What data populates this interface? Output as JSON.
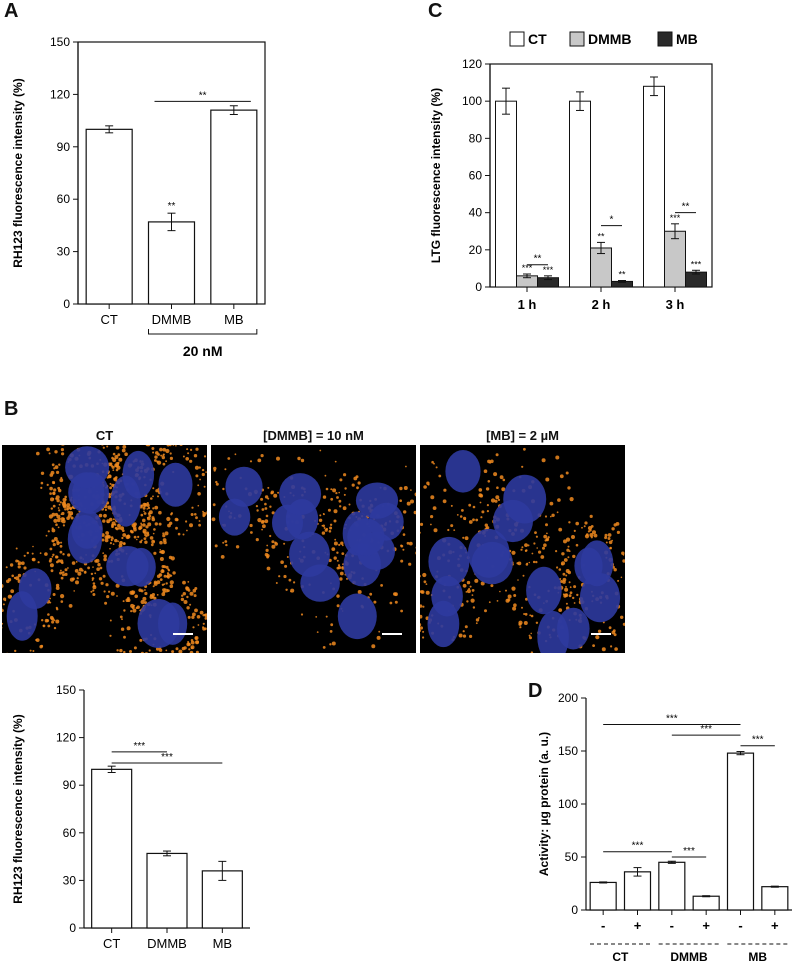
{
  "panels": {
    "A": "A",
    "B": "B",
    "C": "C",
    "D": "D"
  },
  "colors": {
    "white": "#ffffff",
    "gray": "#c8c8c8",
    "black": "#2a2a2a",
    "axis": "#111111",
    "nucleus": "#2d3a9e",
    "mito": "#f08a1e"
  },
  "micrographs": [
    {
      "title": "CT",
      "mito_density": 1.0
    },
    {
      "title": "[DMMB] = 10 nM",
      "mito_density": 0.35
    },
    {
      "title": "[MB] = 2 µM",
      "mito_density": 0.5
    }
  ],
  "chart_data": [
    {
      "id": "A",
      "type": "bar",
      "ylabel": "RH123 fluorescence intensity (%)",
      "ylim": [
        0,
        150
      ],
      "yticks": [
        0,
        30,
        60,
        90,
        120,
        150
      ],
      "categories": [
        "CT",
        "DMMB",
        "MB"
      ],
      "values": [
        100,
        47,
        111
      ],
      "errors": [
        2,
        5,
        2.5
      ],
      "fills": [
        "white",
        "white",
        "white"
      ],
      "bar_annotations": [
        "",
        "**",
        ""
      ],
      "brackets": [
        {
          "from": 1,
          "to": 2,
          "y": 116,
          "label": "**"
        }
      ],
      "group_label": {
        "text": "20 nM",
        "from": 1,
        "to": 2
      }
    },
    {
      "id": "C",
      "type": "bar",
      "ylabel": "LTG fluorescence intensity (%)",
      "ylim": [
        0,
        120
      ],
      "yticks": [
        0,
        20,
        40,
        60,
        80,
        100,
        120
      ],
      "categories": [
        "1 h",
        "2 h",
        "3 h"
      ],
      "legend": [
        "CT",
        "DMMB",
        "MB"
      ],
      "series": [
        {
          "name": "CT",
          "values": [
            100,
            100,
            108
          ],
          "errors": [
            7,
            5,
            5
          ],
          "fill": "white",
          "annotations": [
            "",
            "",
            ""
          ]
        },
        {
          "name": "DMMB",
          "values": [
            6,
            21,
            30
          ],
          "errors": [
            1,
            3,
            4
          ],
          "fill": "gray",
          "annotations": [
            "***",
            "**",
            "***"
          ]
        },
        {
          "name": "MB",
          "values": [
            5,
            3,
            8
          ],
          "errors": [
            1,
            0.5,
            1
          ],
          "fill": "black",
          "annotations": [
            "***",
            "**",
            "***"
          ]
        }
      ],
      "brackets": [
        {
          "group": 0,
          "y": 12,
          "label": "**"
        },
        {
          "group": 1,
          "y": 33,
          "label": "*"
        },
        {
          "group": 2,
          "y": 40,
          "label": "**"
        }
      ]
    },
    {
      "id": "B",
      "type": "bar",
      "ylabel": "RH123 fluorescence intensity (%)",
      "ylim": [
        0,
        150
      ],
      "yticks": [
        0,
        30,
        60,
        90,
        120,
        150
      ],
      "categories": [
        "CT",
        "DMMB",
        "MB"
      ],
      "values": [
        100,
        47,
        36
      ],
      "errors": [
        2,
        1.5,
        6
      ],
      "fills": [
        "white",
        "white",
        "white"
      ],
      "bar_annotations": [
        "",
        "",
        ""
      ],
      "brackets": [
        {
          "from": 0,
          "to": 1,
          "y": 111,
          "label": "***"
        },
        {
          "from": 0,
          "to": 2,
          "y": 104,
          "label": "***"
        }
      ]
    },
    {
      "id": "D",
      "type": "bar",
      "ylabel": "Activity: µg protein (a. u.)",
      "ylim": [
        0,
        200
      ],
      "yticks": [
        0,
        50,
        100,
        150,
        200
      ],
      "categories": [
        "-",
        "+",
        "-",
        "+",
        "-",
        "+"
      ],
      "groups": [
        {
          "label": "CT",
          "from": 0,
          "to": 1
        },
        {
          "label": "DMMB",
          "from": 2,
          "to": 3
        },
        {
          "label": "MB",
          "from": 4,
          "to": 5
        }
      ],
      "values": [
        26,
        36,
        45,
        13,
        148,
        22
      ],
      "errors": [
        0.5,
        4,
        1,
        0.5,
        1.5,
        0.5
      ],
      "fills": [
        "white",
        "white",
        "white",
        "white",
        "white",
        "white"
      ],
      "bar_annotations": [
        "",
        "",
        "",
        "",
        "",
        ""
      ],
      "brackets": [
        {
          "from": 0,
          "to": 2,
          "y": 55,
          "label": "***"
        },
        {
          "from": 2,
          "to": 3,
          "y": 50,
          "label": "***"
        },
        {
          "from": 0,
          "to": 4,
          "y": 175,
          "label": "***"
        },
        {
          "from": 2,
          "to": 4,
          "y": 165,
          "label": "***"
        },
        {
          "from": 4,
          "to": 5,
          "y": 155,
          "label": "***"
        }
      ]
    }
  ]
}
